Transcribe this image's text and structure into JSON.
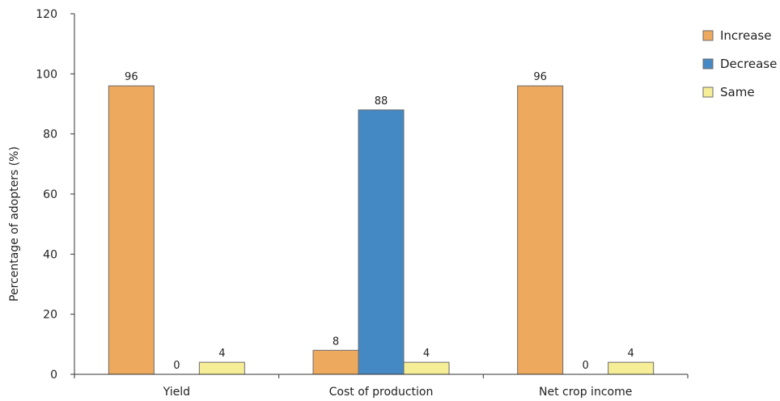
{
  "chart_data": {
    "type": "bar",
    "title": "",
    "xlabel": "",
    "ylabel": "Percentage of adopters (%)",
    "ylim": [
      0,
      120
    ],
    "yticks": [
      0,
      20,
      40,
      60,
      80,
      100,
      120
    ],
    "categories": [
      "Yield",
      "Cost of production",
      "Net crop income"
    ],
    "series": [
      {
        "name": "Increase",
        "values": [
          96,
          8,
          96
        ],
        "color": "#EDA95E"
      },
      {
        "name": "Decrease",
        "values": [
          0,
          88,
          0
        ],
        "color": "#4589C4"
      },
      {
        "name": "Same",
        "values": [
          4,
          4,
          4
        ],
        "color": "#F6EE96"
      }
    ],
    "grid": false,
    "legend_position": "right"
  }
}
